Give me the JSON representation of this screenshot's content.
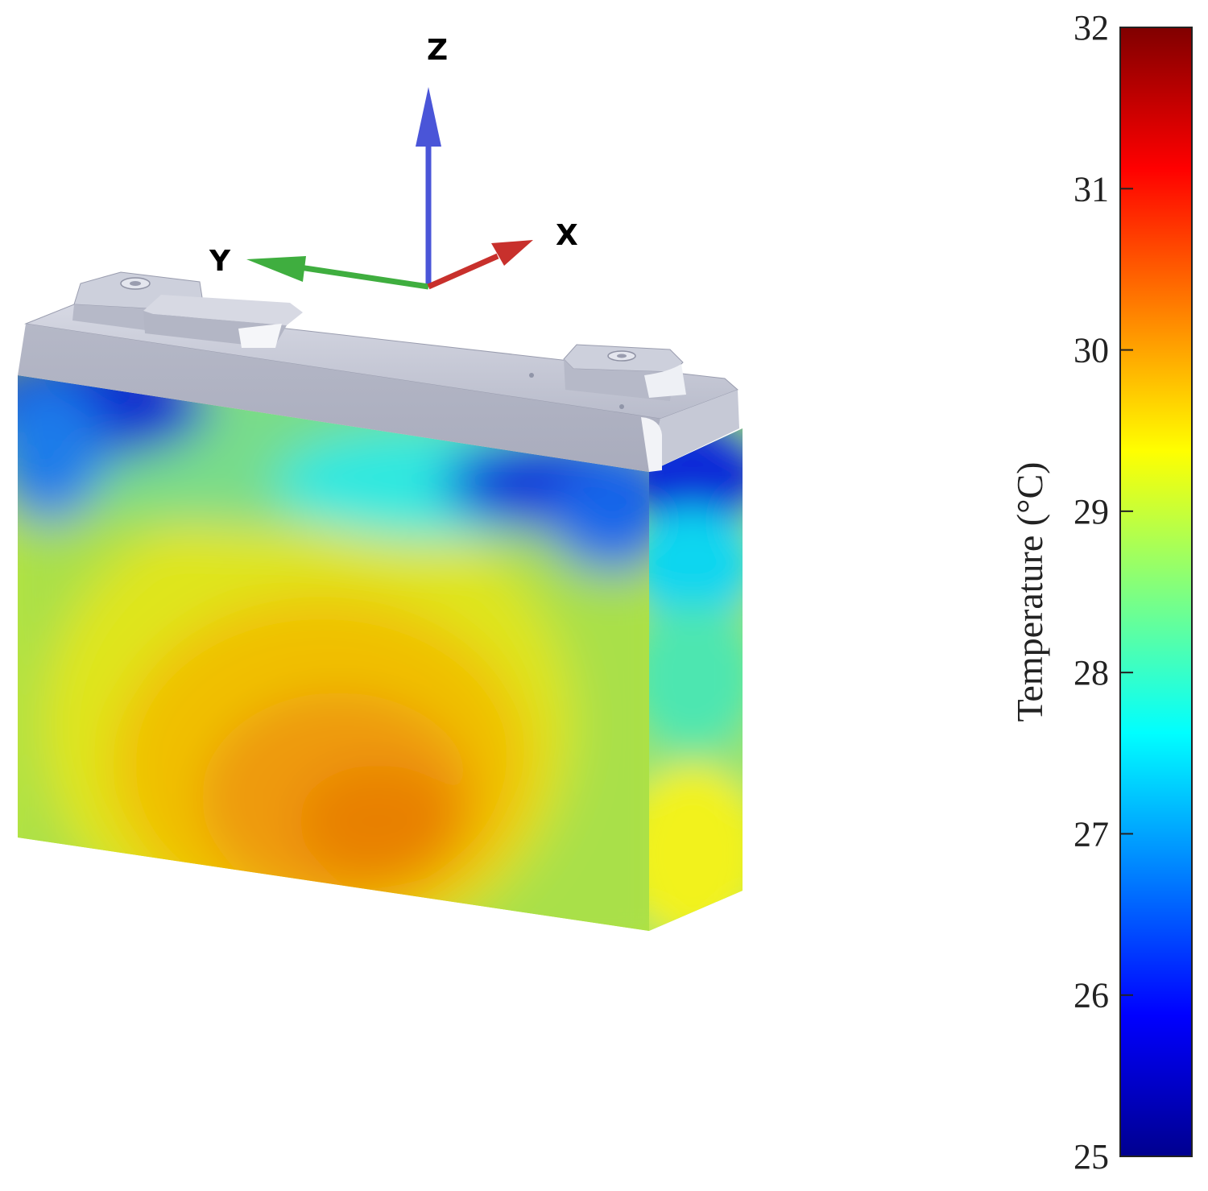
{
  "axes": {
    "z_label": "Z",
    "y_label": "Y",
    "x_label": "X",
    "z_color": "#4a55d8",
    "y_color": "#3fae3f",
    "x_color": "#c8302c"
  },
  "colorbar": {
    "title": "Temperature (°C)",
    "min": 25,
    "max": 32,
    "ticks": [
      "25",
      "26",
      "27",
      "28",
      "29",
      "30",
      "31",
      "32"
    ],
    "colormap": "jet"
  },
  "battery": {
    "cap_color": "#b8bccb",
    "hotspot_temperature": 30.2,
    "coldspot_temperature": 25.6
  }
}
